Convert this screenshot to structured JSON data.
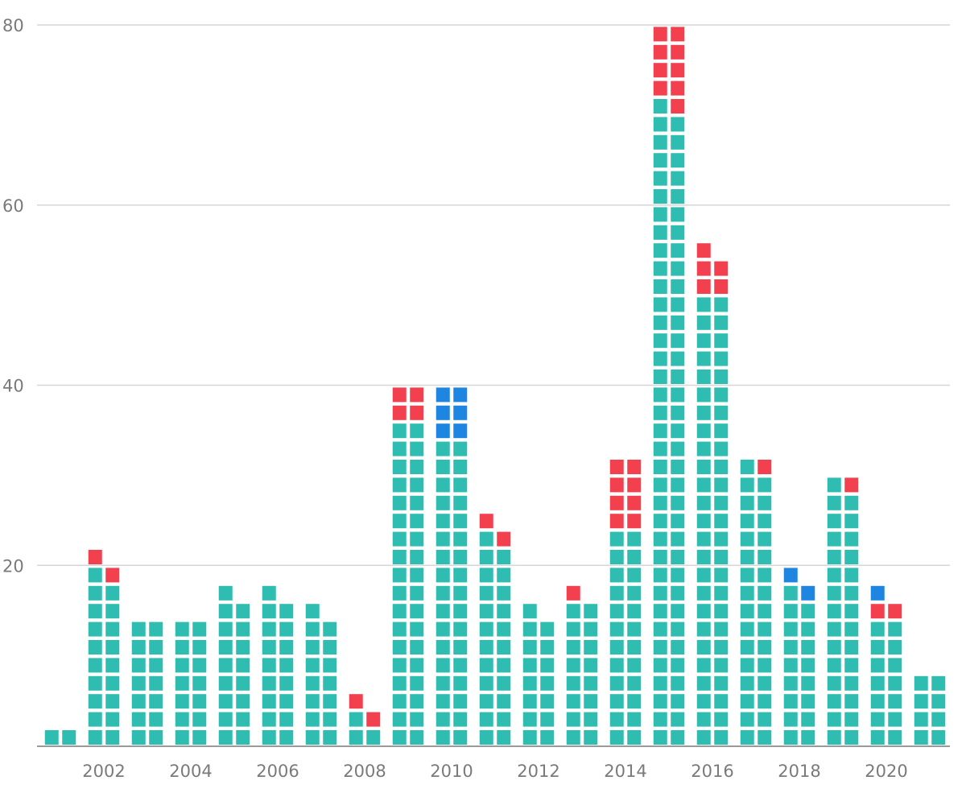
{
  "chart_data": {
    "type": "waffle-bar",
    "title": "",
    "xlabel": "",
    "ylabel": "",
    "ylim": [
      0,
      80
    ],
    "y_ticks": [
      "20",
      "40",
      "60",
      "80"
    ],
    "x_tick_labels": [
      "2002",
      "2004",
      "2006",
      "2008",
      "2010",
      "2012",
      "2014",
      "2016",
      "2018",
      "2020"
    ],
    "unit_per_cell": 1,
    "categories": [
      "2001",
      "2002",
      "2003",
      "2004",
      "2005",
      "2006",
      "2007",
      "2008",
      "2009",
      "2010",
      "2011",
      "2012",
      "2013",
      "2014",
      "2015",
      "2016",
      "2017",
      "2018",
      "2019",
      "2020",
      "2021"
    ],
    "series": [
      {
        "name": "teal",
        "color": "#2ebdb0",
        "values": [
          2,
          19,
          14,
          14,
          17,
          17,
          15,
          3,
          36,
          34,
          23,
          15,
          16,
          24,
          71,
          50,
          31,
          17,
          29,
          14,
          8
        ]
      },
      {
        "name": "red",
        "color": "#f2404e",
        "values": [
          0,
          2,
          0,
          0,
          0,
          0,
          0,
          2,
          4,
          0,
          2,
          0,
          1,
          8,
          9,
          5,
          1,
          0,
          1,
          2,
          0
        ]
      },
      {
        "name": "blue",
        "color": "#1e86e0",
        "values": [
          0,
          0,
          0,
          0,
          0,
          0,
          0,
          0,
          0,
          6,
          0,
          0,
          0,
          0,
          0,
          0,
          0,
          2,
          0,
          1,
          0
        ]
      }
    ],
    "legend": "none",
    "grid": true
  }
}
